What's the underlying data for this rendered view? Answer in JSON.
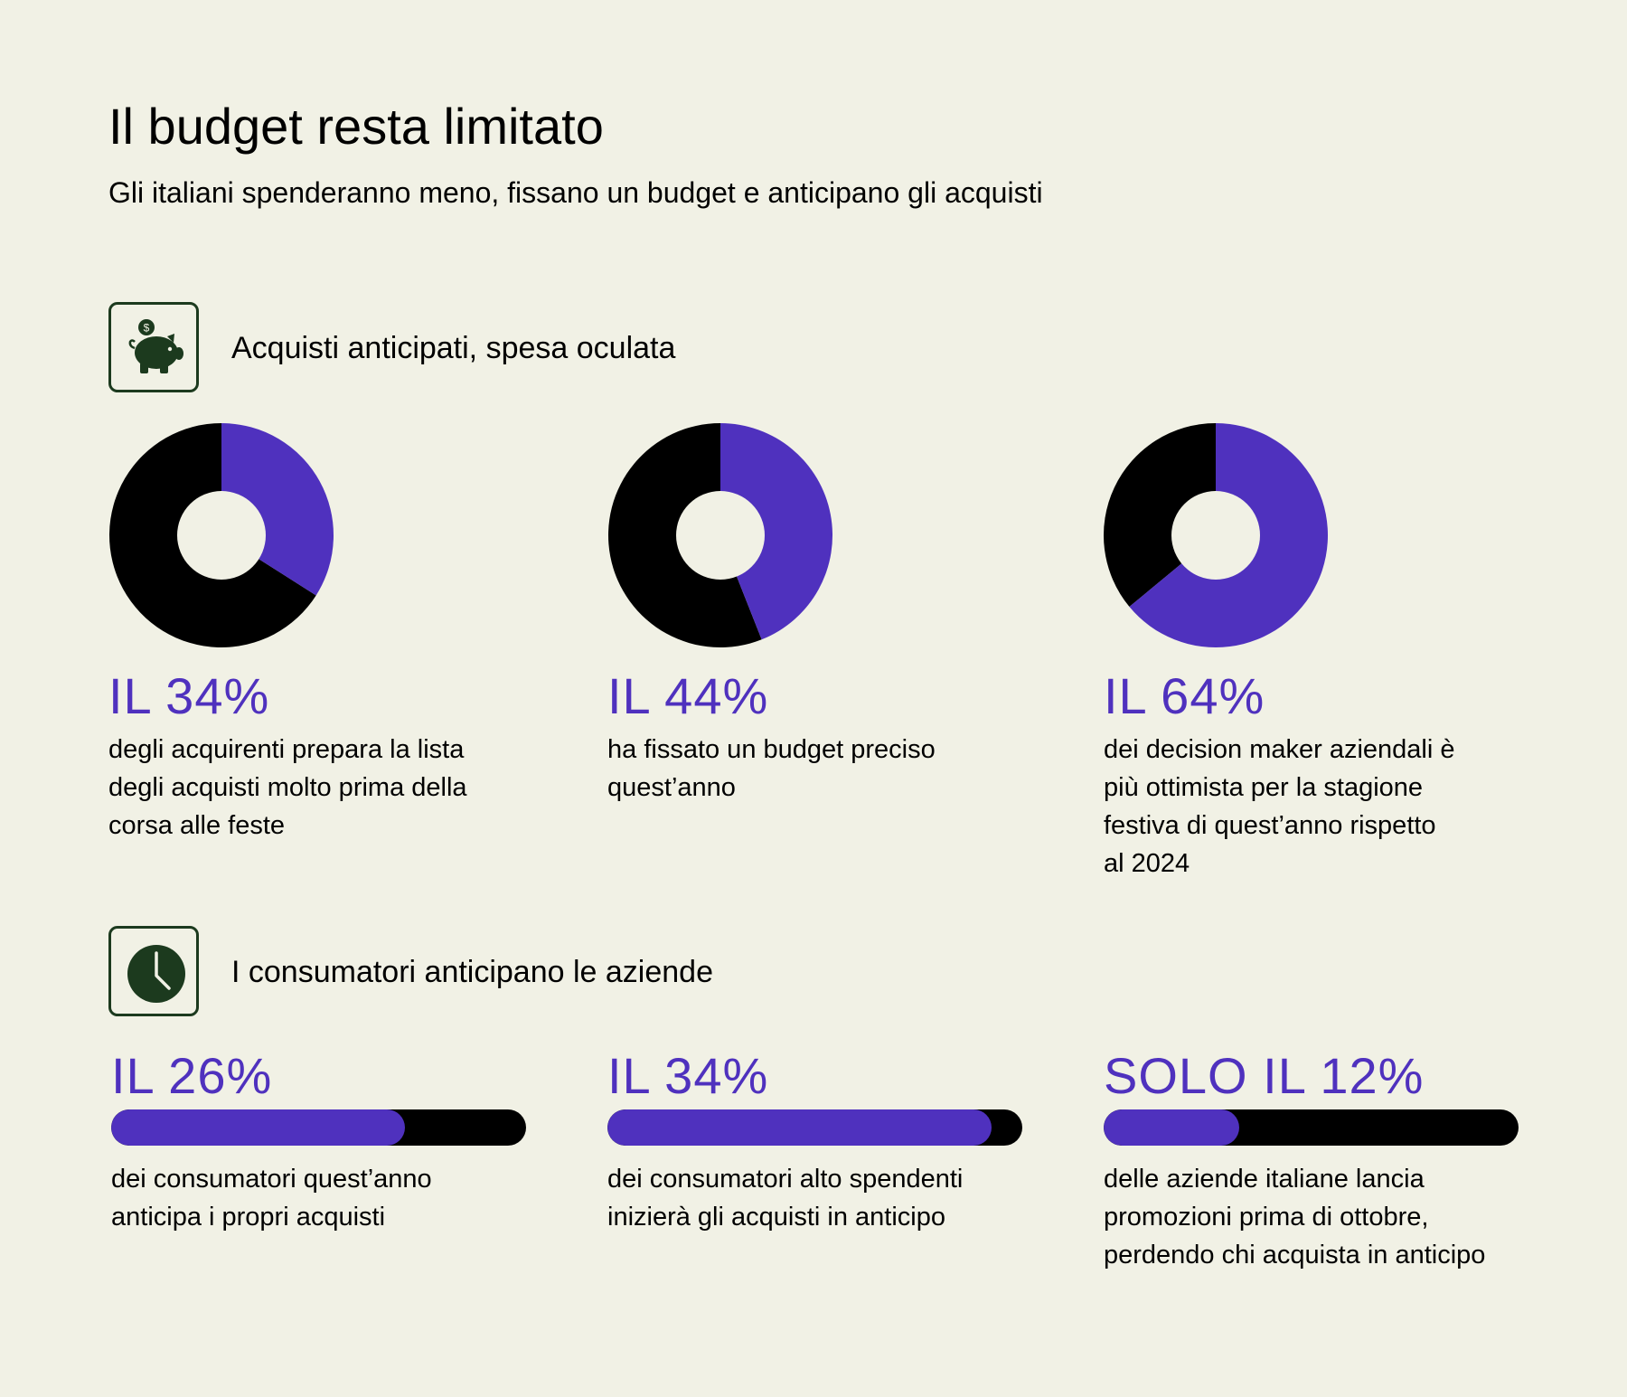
{
  "header": {
    "title": "Il budget resta limitato",
    "subtitle": "Gli italiani spenderanno meno, fissano un budget e anticipano gli acquisti"
  },
  "colors": {
    "accent": "#4f31be",
    "remainder": "#000000",
    "icon": "#1c3a1e",
    "background": "#f1f1e5"
  },
  "sections": [
    {
      "icon": "piggy-bank-icon",
      "title": "Acquisti anticipati, spesa oculata"
    },
    {
      "icon": "clock-icon",
      "title": "I consumatori anticipano le aziende"
    }
  ],
  "icon_text": {
    "dollar": "$"
  },
  "chart_data": [
    {
      "type": "pie",
      "title": "Acquisti anticipati, spesa oculata",
      "items": [
        {
          "value": 34,
          "label": "IL 34%",
          "lines": [
            "degli acquirenti prepara la lista",
            "degli acquisti molto prima della",
            "corsa alle feste"
          ]
        },
        {
          "value": 44,
          "label": "IL 44%",
          "lines": [
            "ha fissato un budget preciso",
            "quest’anno"
          ]
        },
        {
          "value": 64,
          "label": "IL 64%",
          "lines": [
            "dei decision maker aziendali è",
            "più ottimista per la stagione",
            "festiva di quest’anno rispetto",
            "al 2024"
          ]
        }
      ]
    },
    {
      "type": "bar",
      "title": "I consumatori anticipano le aziende",
      "items": [
        {
          "value": 26,
          "label": "IL 26%",
          "lines": [
            "dei consumatori quest’anno",
            "anticipa i propri acquisti"
          ]
        },
        {
          "value": 34,
          "label": "IL 34%",
          "lines": [
            "dei consumatori alto spendenti",
            "inizierà gli acquisti in anticipo"
          ]
        },
        {
          "value": 12,
          "label": "SOLO IL 12%",
          "lines": [
            "delle aziende italiane lancia",
            "promozioni prima di ottobre,",
            "perdendo chi acquista in anticipo"
          ]
        }
      ]
    }
  ]
}
